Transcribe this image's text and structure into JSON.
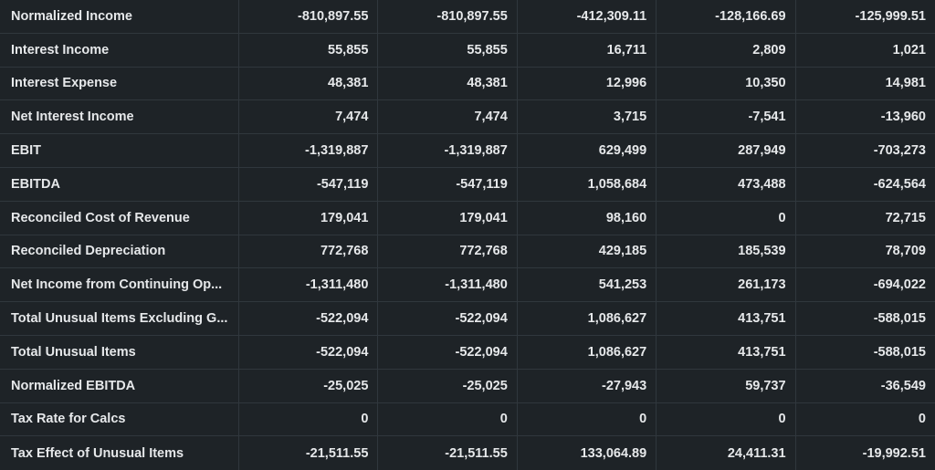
{
  "table": {
    "rows": [
      {
        "label": "Normalized Income",
        "values": [
          "-810,897.55",
          "-810,897.55",
          "-412,309.11",
          "-128,166.69",
          "-125,999.51"
        ]
      },
      {
        "label": "Interest Income",
        "values": [
          "55,855",
          "55,855",
          "16,711",
          "2,809",
          "1,021"
        ]
      },
      {
        "label": "Interest Expense",
        "values": [
          "48,381",
          "48,381",
          "12,996",
          "10,350",
          "14,981"
        ]
      },
      {
        "label": "Net Interest Income",
        "values": [
          "7,474",
          "7,474",
          "3,715",
          "-7,541",
          "-13,960"
        ]
      },
      {
        "label": "EBIT",
        "values": [
          "-1,319,887",
          "-1,319,887",
          "629,499",
          "287,949",
          "-703,273"
        ]
      },
      {
        "label": "EBITDA",
        "values": [
          "-547,119",
          "-547,119",
          "1,058,684",
          "473,488",
          "-624,564"
        ]
      },
      {
        "label": "Reconciled Cost of Revenue",
        "values": [
          "179,041",
          "179,041",
          "98,160",
          "0",
          "72,715"
        ]
      },
      {
        "label": "Reconciled Depreciation",
        "values": [
          "772,768",
          "772,768",
          "429,185",
          "185,539",
          "78,709"
        ]
      },
      {
        "label": "Net Income from Continuing Op...",
        "values": [
          "-1,311,480",
          "-1,311,480",
          "541,253",
          "261,173",
          "-694,022"
        ]
      },
      {
        "label": "Total Unusual Items Excluding G...",
        "values": [
          "-522,094",
          "-522,094",
          "1,086,627",
          "413,751",
          "-588,015"
        ]
      },
      {
        "label": "Total Unusual Items",
        "values": [
          "-522,094",
          "-522,094",
          "1,086,627",
          "413,751",
          "-588,015"
        ]
      },
      {
        "label": "Normalized EBITDA",
        "values": [
          "-25,025",
          "-25,025",
          "-27,943",
          "59,737",
          "-36,549"
        ]
      },
      {
        "label": "Tax Rate for Calcs",
        "values": [
          "0",
          "0",
          "0",
          "0",
          "0"
        ]
      },
      {
        "label": "Tax Effect of Unusual Items",
        "values": [
          "-21,511.55",
          "-21,511.55",
          "133,064.89",
          "24,411.31",
          "-19,992.51"
        ]
      }
    ]
  }
}
